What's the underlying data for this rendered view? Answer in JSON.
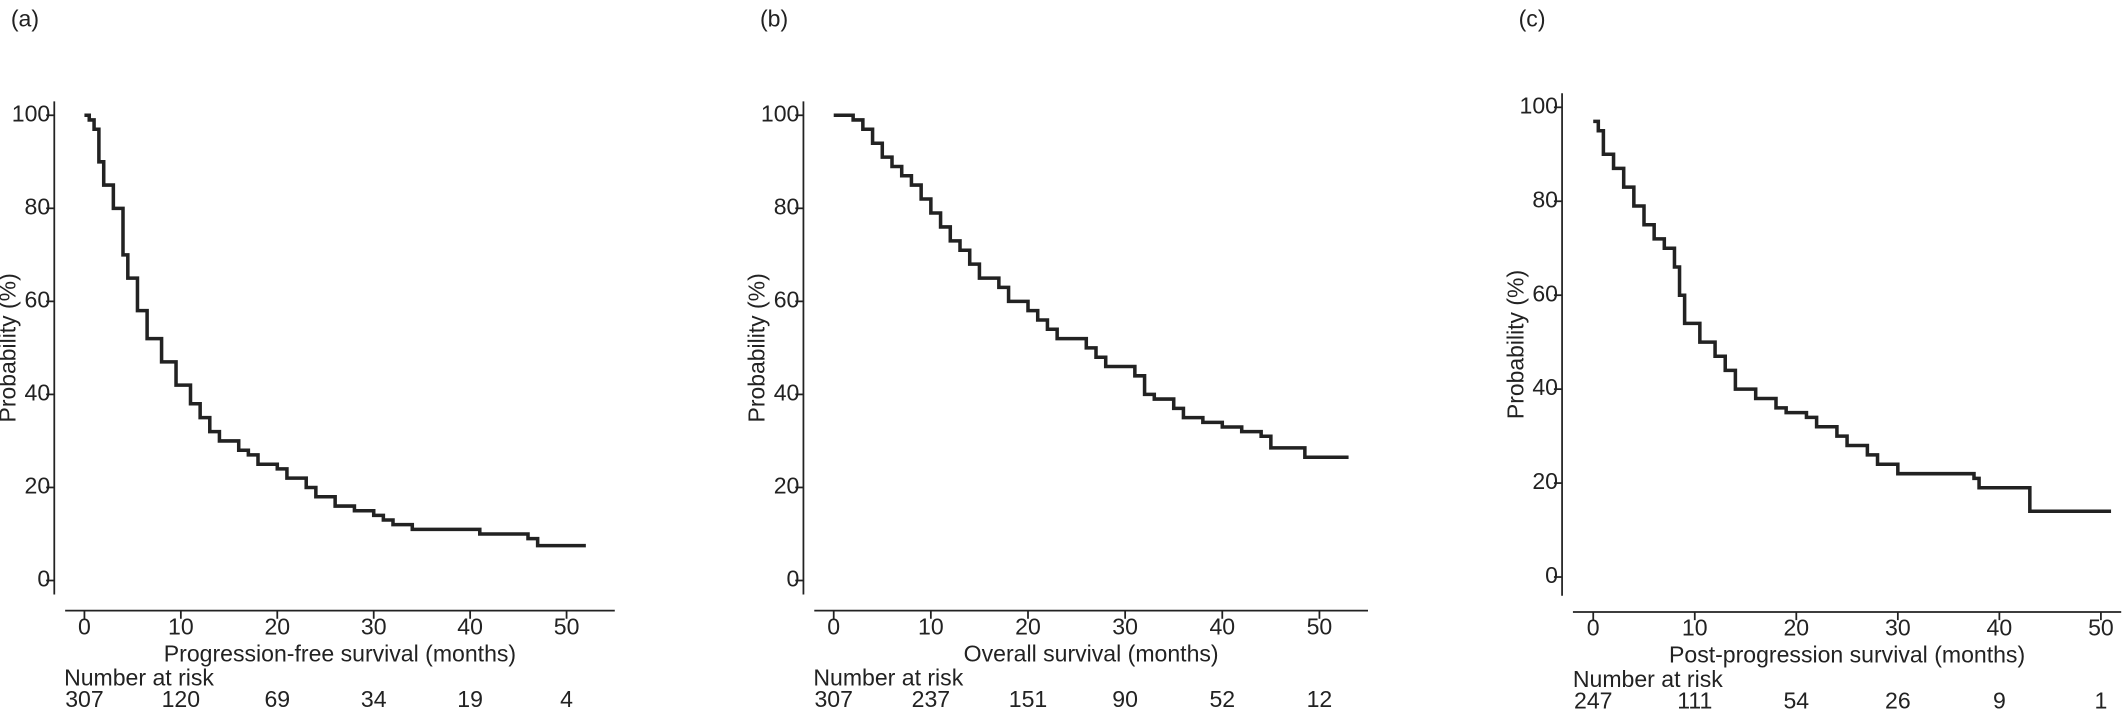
{
  "chart_data": [
    {
      "type": "step",
      "panel_label": "(a)",
      "x_label": "Progression-free survival (months)",
      "y_label": "Probability (%)",
      "xlim": [
        -2,
        55
      ],
      "ylim": [
        -3,
        103
      ],
      "xticks": [
        0,
        10,
        20,
        30,
        40,
        50
      ],
      "yticks": [
        0,
        20,
        40,
        60,
        80,
        100
      ],
      "x": [
        0,
        0.5,
        1,
        1.5,
        2,
        3,
        4,
        4.5,
        5.5,
        6.5,
        8,
        9.5,
        11,
        12,
        13,
        14,
        16,
        17,
        18,
        20,
        21,
        23,
        24,
        26,
        28,
        30,
        31,
        32,
        34,
        40,
        41,
        46,
        47,
        52
      ],
      "series": [
        {
          "color": "#222222",
          "values": [
            100,
            99,
            97,
            90,
            85,
            80,
            70,
            65,
            58,
            52,
            47,
            42,
            38,
            35,
            32,
            30,
            28,
            27,
            25,
            24,
            22,
            20,
            18,
            16,
            15,
            14,
            13,
            12,
            11,
            11,
            10,
            9,
            7.5,
            7.5
          ]
        }
      ],
      "risk_table_title": "Number at risk",
      "at_risk": [
        307,
        120,
        69,
        34,
        19,
        4
      ]
    },
    {
      "type": "step",
      "panel_label": "(b)",
      "x_label": "Overall survival (months)",
      "y_label": "Probability (%)",
      "xlim": [
        -2,
        55
      ],
      "ylim": [
        -3,
        103
      ],
      "xticks": [
        0,
        10,
        20,
        30,
        40,
        50
      ],
      "yticks": [
        0,
        20,
        40,
        60,
        80,
        100
      ],
      "x": [
        0,
        1,
        2,
        3,
        4,
        5,
        6,
        7,
        8,
        9,
        10,
        11,
        12,
        13,
        14,
        15,
        17,
        18,
        20,
        21,
        22,
        23,
        25,
        26,
        27,
        28,
        30,
        31,
        32,
        33,
        35,
        36,
        38,
        40,
        42,
        44,
        45,
        48.5,
        53
      ],
      "series": [
        {
          "color": "#222222",
          "values": [
            100,
            100,
            99,
            97,
            94,
            91,
            89,
            87,
            85,
            82,
            79,
            76,
            73,
            71,
            68,
            65,
            63,
            60,
            58,
            56,
            54,
            52,
            52,
            50,
            48,
            46,
            46,
            44,
            40,
            39,
            37,
            35,
            34,
            33,
            32,
            31,
            28.5,
            26.5,
            26.5
          ]
        }
      ],
      "risk_table_title": "Number at risk",
      "at_risk": [
        307,
        237,
        151,
        90,
        52,
        12
      ]
    },
    {
      "type": "step",
      "panel_label": "(c)",
      "x_label": "Post-progression  survival (months)",
      "y_label": "Probability (%)",
      "xlim": [
        -2,
        52
      ],
      "ylim": [
        -4,
        103
      ],
      "xticks": [
        0,
        10,
        20,
        30,
        40,
        50
      ],
      "yticks": [
        0,
        20,
        40,
        60,
        80,
        100
      ],
      "x": [
        0,
        0.5,
        1,
        2,
        3,
        4,
        5,
        6,
        7,
        8,
        8.5,
        9,
        10.5,
        12,
        13,
        14,
        16,
        18,
        19,
        21,
        22,
        24,
        25,
        27,
        28,
        30,
        37,
        37.5,
        38,
        43,
        51
      ],
      "series": [
        {
          "color": "#222222",
          "values": [
            97,
            95,
            90,
            87,
            83,
            79,
            75,
            72,
            70,
            66,
            60,
            54,
            50,
            47,
            44,
            40,
            38,
            36,
            35,
            34,
            32,
            30,
            28,
            26,
            24,
            22,
            22,
            21,
            19,
            14,
            14
          ]
        }
      ],
      "risk_table_title": "Number at risk",
      "at_risk": [
        247,
        111,
        54,
        26,
        9,
        1
      ]
    }
  ]
}
